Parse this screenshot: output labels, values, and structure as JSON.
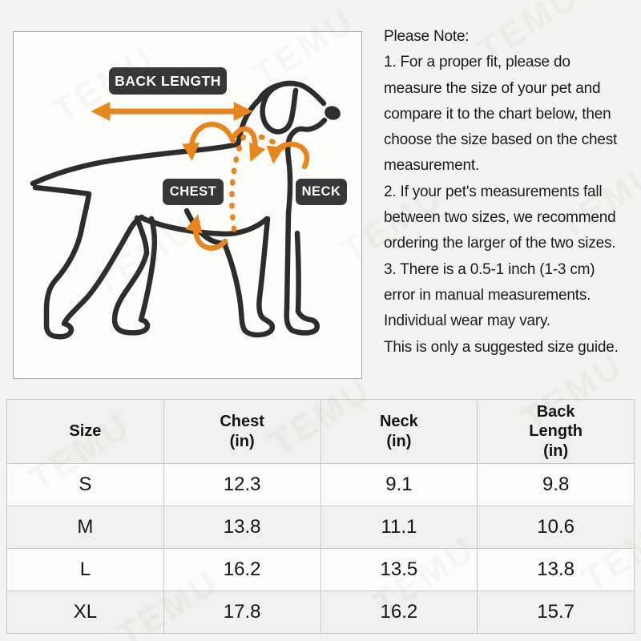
{
  "watermark": {
    "text": "TEMU"
  },
  "diagram": {
    "back_length_label": "BACK LENGTH",
    "chest_label": "CHEST",
    "neck_label": "NECK"
  },
  "note": {
    "lines": [
      "Please Note:",
      "1. For a proper fit, please do",
      "measure the size of your pet and",
      "compare it to the chart below, then",
      "choose the size based on the chest",
      "measurement.",
      "2. If your pet's measurements fall",
      "between two sizes, we recommend",
      "ordering the larger of the two sizes.",
      "3. There is a 0.5-1 inch (1-3 cm)",
      "error in manual measurements.",
      "Individual wear may vary.",
      "This is only a suggested size guide."
    ]
  },
  "size_table": {
    "headers": [
      "Size",
      "Chest\n(in)",
      "Neck\n(in)",
      "Back\nLength\n(in)"
    ],
    "rows": [
      {
        "size": "S",
        "chest": "12.3",
        "neck": "9.1",
        "back_length": "9.8"
      },
      {
        "size": "M",
        "chest": "13.8",
        "neck": "11.1",
        "back_length": "10.6"
      },
      {
        "size": "L",
        "chest": "16.2",
        "neck": "13.5",
        "back_length": "13.8"
      },
      {
        "size": "XL",
        "chest": "17.8",
        "neck": "16.2",
        "back_length": "15.7"
      }
    ]
  },
  "colors": {
    "accent_orange": "#e8861c",
    "label_dark": "#373737",
    "dog_line": "#2d2d2d"
  }
}
